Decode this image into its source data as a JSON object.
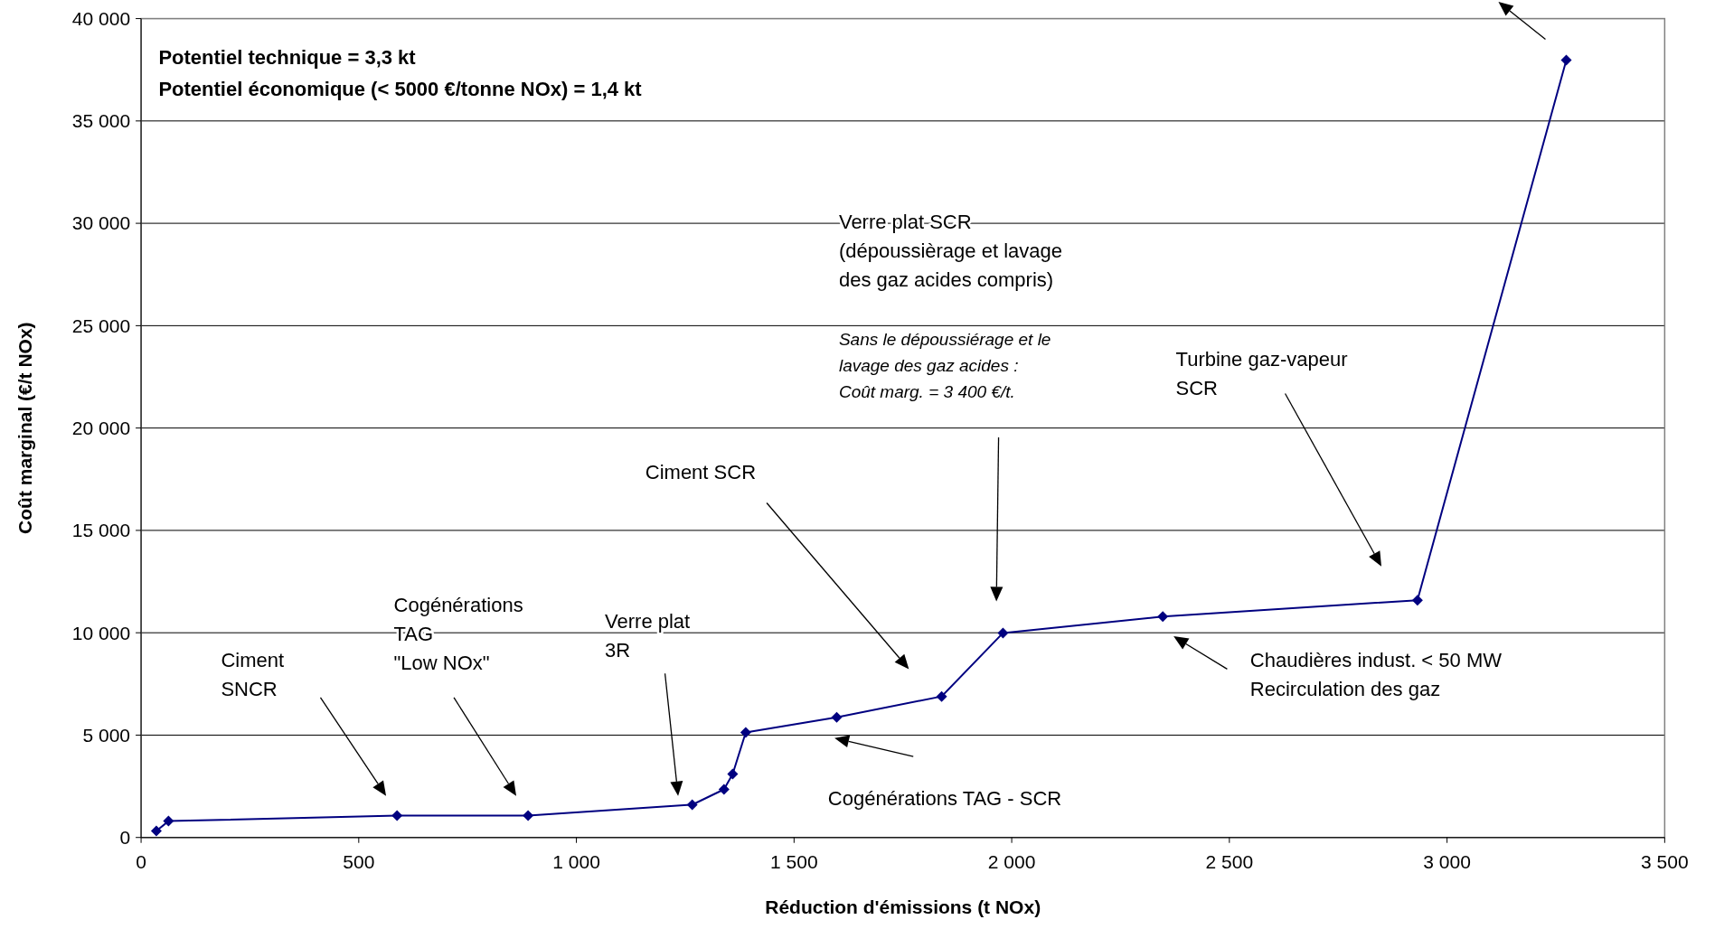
{
  "chart_data": {
    "type": "line",
    "xlabel": "Réduction d'émissions (t NOx)",
    "ylabel": "Coût marginal (€/t NOx)",
    "x": [
      35,
      63,
      588,
      889,
      1266,
      1339,
      1359,
      1389,
      1598,
      1839,
      1980,
      2347,
      2932,
      3274
    ],
    "series": [
      {
        "color": "#000080",
        "values": [
          320,
          800,
          1070,
          1070,
          1600,
          2350,
          3100,
          5130,
          5870,
          6890,
          9990,
          10790,
          11590,
          37970
        ]
      }
    ],
    "xlim": [
      0,
      3500
    ],
    "xticks": [
      0,
      {
        "value": 500,
        "label": "500"
      },
      {
        "value": 1000,
        "label": "1 000"
      },
      {
        "value": 1500,
        "label": "1 500"
      },
      {
        "value": 2000,
        "label": "2 000"
      },
      {
        "value": 2500,
        "label": "2 500"
      },
      {
        "value": 3000,
        "label": "3 000"
      },
      {
        "value": 3500,
        "label": "3 500"
      }
    ],
    "ylim": [
      0,
      40000
    ],
    "yticks": [
      0,
      {
        "value": 5000,
        "label": "5 000"
      },
      {
        "value": 10000,
        "label": "10 000"
      },
      {
        "value": 15000,
        "label": "15 000"
      },
      {
        "value": 20000,
        "label": "20 000"
      },
      {
        "value": 25000,
        "label": "25 000"
      },
      {
        "value": 30000,
        "label": "30 000"
      },
      {
        "value": 35000,
        "label": "35 000"
      },
      {
        "value": 40000,
        "label": "40 000"
      }
    ],
    "grid": "y",
    "marker": "diamond",
    "line_style": "solid",
    "annotations": [
      "Ciment\nSNCR",
      "Cogénérations\nTAG\n\"Low NOx\"",
      "Verre plat\n3R",
      "Ciment SCR",
      "Cogénérations TAG - SCR",
      "Verre plat SCR\n(dépoussièrage et lavage\ndes gaz acides compris)",
      "Sans le dépoussiérage et le\nlavage des gaz acides :\nCoût marg. = 3 400 €/t.",
      "Turbine gaz-vapeur\nSCR",
      "Chaudières indust. < 50 MW\nRecirculation des gaz",
      "Potentiel technique = 3,3 kt",
      "Potentiel économique (< 5000 €/tonne NOx) = 1,4 kt"
    ]
  }
}
